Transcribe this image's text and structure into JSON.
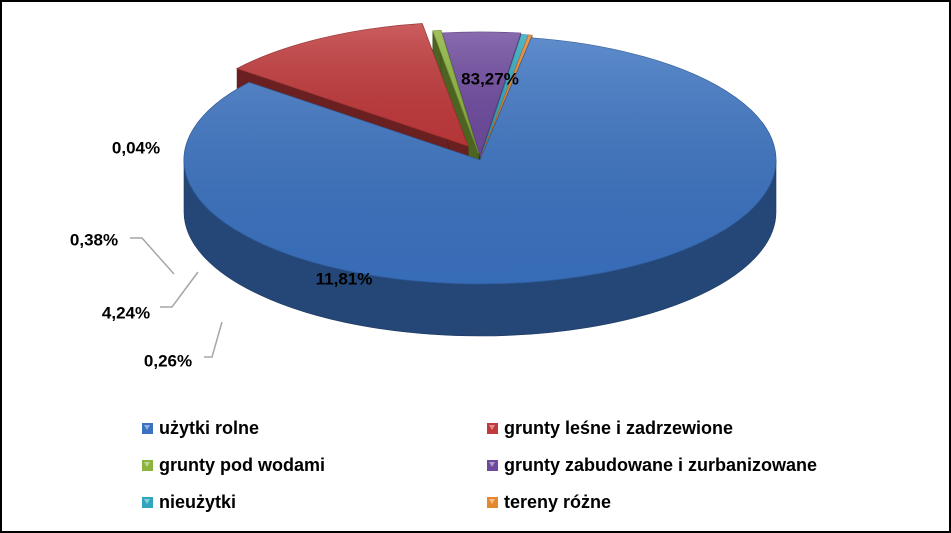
{
  "chart_data": {
    "type": "pie",
    "title": "",
    "legend_position": "bottom",
    "slices": [
      {
        "label": "użytki rolne",
        "value": 83.27,
        "value_label": "83,27%",
        "color": "#3A72C0"
      },
      {
        "label": "grunty leśne i zadrzewione",
        "value": 11.81,
        "value_label": "11,81%",
        "color": "#C0393B"
      },
      {
        "label": "grunty pod wodami",
        "value": 0.26,
        "value_label": "0,26%",
        "color": "#8CB43C"
      },
      {
        "label": "grunty zabudowane i zurbanizowane",
        "value": 4.24,
        "value_label": "4,24%",
        "color": "#6E4A9E"
      },
      {
        "label": "nieużytki",
        "value": 0.38,
        "value_label": "0,38%",
        "color": "#2FA6BE"
      },
      {
        "label": "tereny różne",
        "value": 0.04,
        "value_label": "0,04%",
        "color": "#E8862E"
      }
    ]
  }
}
